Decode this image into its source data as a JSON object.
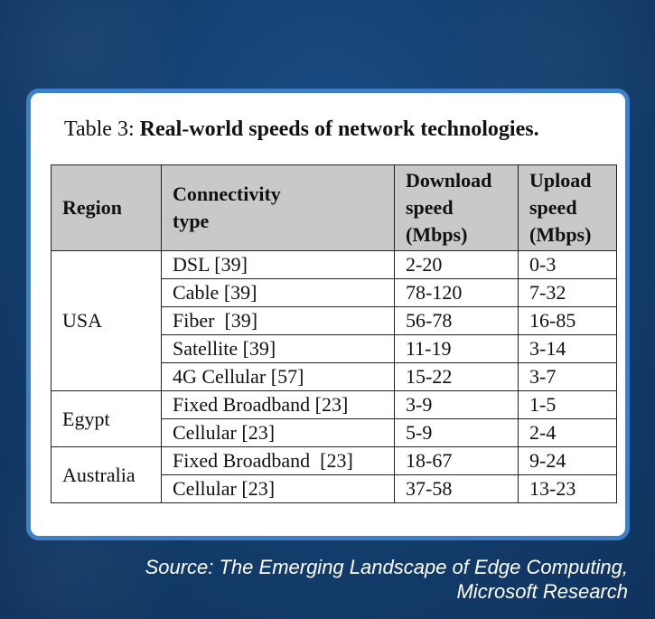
{
  "caption": {
    "prefix": "Table 3: ",
    "title": "Real-world speeds of network technologies."
  },
  "table": {
    "headers": {
      "region": "Region",
      "connectivity": [
        "Connectivity",
        "type"
      ],
      "download": [
        "Download",
        "speed",
        "(Mbps)"
      ],
      "upload": [
        "Upload",
        "speed",
        "(Mbps)"
      ]
    },
    "groups": [
      {
        "region": "USA",
        "rows": [
          {
            "type": "DSL [39]",
            "download": "2-20",
            "upload": "0-3"
          },
          {
            "type": "Cable [39]",
            "download": "78-120",
            "upload": "7-32"
          },
          {
            "type": "Fiber  [39]",
            "download": "56-78",
            "upload": "16-85"
          },
          {
            "type": "Satellite [39]",
            "download": "11-19",
            "upload": "3-14"
          },
          {
            "type": "4G Cellular [57]",
            "download": "15-22",
            "upload": "3-7"
          }
        ]
      },
      {
        "region": "Egypt",
        "rows": [
          {
            "type": "Fixed Broadband [23]",
            "download": "3-9",
            "upload": "1-5"
          },
          {
            "type": "Cellular [23]",
            "download": "5-9",
            "upload": "2-4"
          }
        ]
      },
      {
        "region": "Australia",
        "rows": [
          {
            "type": "Fixed Broadband  [23]",
            "download": "18-67",
            "upload": "9-24"
          },
          {
            "type": "Cellular [23]",
            "download": "37-58",
            "upload": "13-23"
          }
        ]
      }
    ]
  },
  "source": {
    "line1": "Source: The Emerging Landscape of Edge Computing,",
    "line2": "Microsoft Research"
  },
  "colors": {
    "background": "#143f70",
    "card_border": "#3d7fc9",
    "header_fill": "#c9c9c9"
  }
}
